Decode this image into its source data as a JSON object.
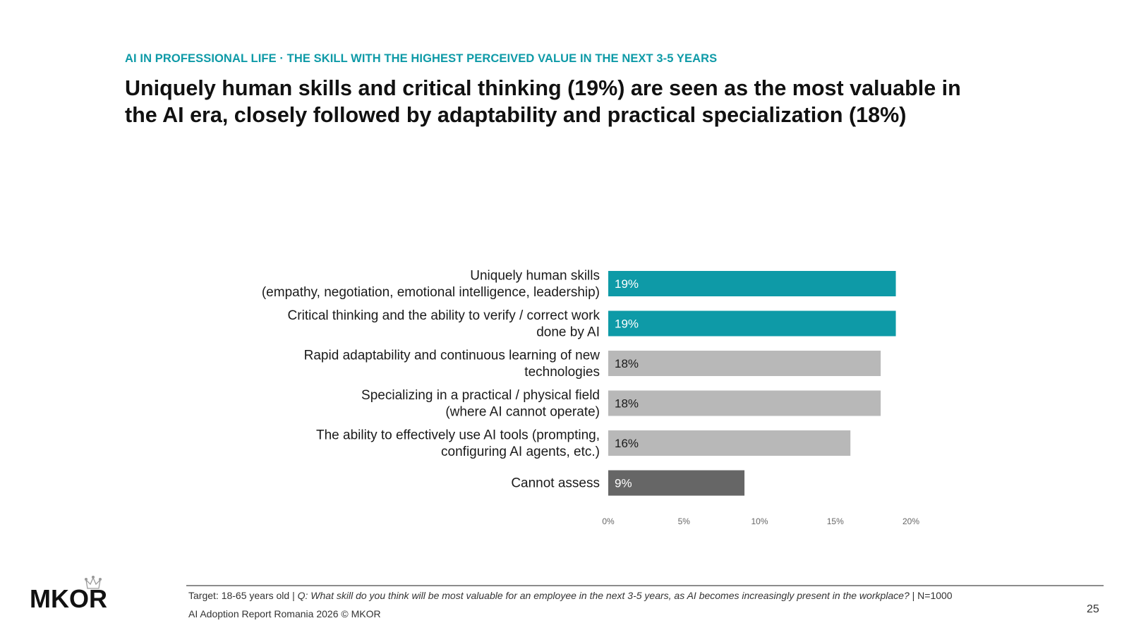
{
  "header": {
    "eyebrow": "AI IN PROFESSIONAL LIFE · THE SKILL WITH THE HIGHEST PERCEIVED VALUE IN THE NEXT 3-5 YEARS",
    "title_line1": "Uniquely human skills and critical thinking (19%) are seen as the most valuable in",
    "title_line2": "the AI era, closely followed by adaptability and practical specialization (18%)"
  },
  "chart_data": {
    "type": "bar",
    "orientation": "horizontal",
    "categories": [
      [
        "Uniquely human skills",
        "(empathy, negotiation, emotional intelligence, leadership)"
      ],
      [
        "Critical thinking and the ability to verify / correct work",
        "done by AI"
      ],
      [
        "Rapid adaptability and continuous learning of new",
        "technologies"
      ],
      [
        "Specializing in a practical / physical field",
        "(where AI cannot operate)"
      ],
      [
        "The ability to effectively use AI tools (prompting,",
        "configuring AI agents, etc.)"
      ],
      [
        "Cannot assess"
      ]
    ],
    "values": [
      19,
      19,
      18,
      18,
      16,
      9
    ],
    "value_labels": [
      "19%",
      "19%",
      "18%",
      "18%",
      "16%",
      "9%"
    ],
    "colors": [
      "#0e9aa7",
      "#0e9aa7",
      "#b8b8b8",
      "#b8b8b8",
      "#b8b8b8",
      "#666666"
    ],
    "label_colors": [
      "#ffffff",
      "#ffffff",
      "#1a1a1a",
      "#1a1a1a",
      "#1a1a1a",
      "#ffffff"
    ],
    "xlim": [
      0,
      20
    ],
    "xticks": [
      0,
      5,
      10,
      15,
      20
    ],
    "xtick_labels": [
      "0%",
      "5%",
      "10%",
      "15%",
      "20%"
    ],
    "grid": false,
    "legend": false
  },
  "footer": {
    "target": "Target: 18-65 years old | ",
    "question": "Q: What skill do you think will be most valuable for an employee in the next 3-5 years, as AI becomes increasingly present in the workplace?",
    "sample": " | N=1000",
    "copyright": "AI Adoption Report Romania 2026 © MKOR",
    "page_number": "25",
    "logo_text": "MKOR"
  }
}
